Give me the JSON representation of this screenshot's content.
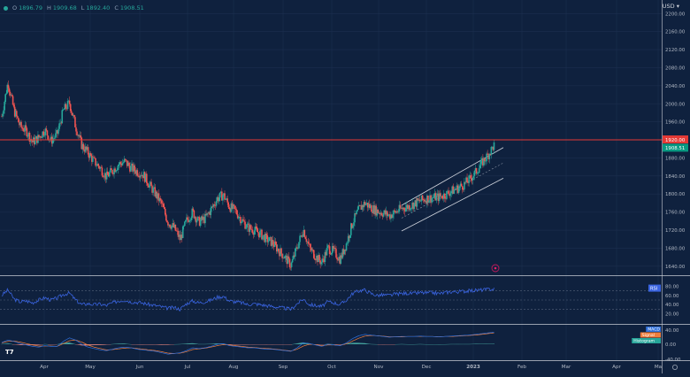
{
  "legend": {
    "o_label": "O",
    "o_value": "1896.79",
    "h_label": "H",
    "h_value": "1909.68",
    "l_label": "L",
    "l_value": "1892.40",
    "c_label": "C",
    "c_value": "1908.51"
  },
  "currency": "USD",
  "price_axis": {
    "ticks": [
      "2200.00",
      "2160.00",
      "2120.00",
      "2080.00",
      "2040.00",
      "2000.00",
      "1960.00",
      "1920.00",
      "1880.00",
      "1840.00",
      "1800.00",
      "1760.00",
      "1720.00",
      "1680.00",
      "1640.00"
    ],
    "level_value": "1920.00",
    "last_value": "1908.51"
  },
  "time_axis": [
    "Apr",
    "May",
    "Jun",
    "Jul",
    "Aug",
    "Sep",
    "Oct",
    "Nov",
    "Dec",
    "2023",
    "Feb",
    "Mar",
    "Apr",
    "Ma"
  ],
  "rsi": {
    "label": "RSI",
    "ticks": [
      "80.00",
      "60.00",
      "40.00",
      "20.00"
    ]
  },
  "macd": {
    "ticks": [
      "40.00",
      "0.00",
      "-40.00"
    ],
    "labels": [
      "MACD",
      "Signal",
      "Histogram"
    ]
  },
  "colors": {
    "background": "#0f213e",
    "up": "#26a69a",
    "down": "#ef5350",
    "level": "#e53935",
    "rsi": "#3a64e0",
    "macd": "#2f6fd9",
    "signal": "#ef7d3c"
  },
  "chart_data": {
    "type": "candlestick",
    "y_range": [
      1620,
      2230
    ],
    "horizontal_level": 1920,
    "last_close": 1908.51,
    "open_high_low_close": [
      1896.79,
      1909.68,
      1892.4,
      1908.51
    ],
    "close_path": [
      1972,
      2048,
      1985,
      1950,
      1940,
      1915,
      1925,
      1942,
      1918,
      1932,
      1985,
      2002,
      1950,
      1908,
      1892,
      1872,
      1858,
      1838,
      1852,
      1866,
      1872,
      1858,
      1850,
      1843,
      1820,
      1800,
      1777,
      1738,
      1725,
      1700,
      1740,
      1760,
      1738,
      1745,
      1765,
      1790,
      1798,
      1772,
      1762,
      1742,
      1726,
      1720,
      1712,
      1700,
      1692,
      1675,
      1660,
      1642,
      1682,
      1722,
      1680,
      1662,
      1648,
      1680,
      1672,
      1655,
      1690,
      1736,
      1765,
      1780,
      1770,
      1762,
      1758,
      1752,
      1760,
      1768,
      1772,
      1778,
      1785,
      1790,
      1792,
      1793,
      1798,
      1806,
      1812,
      1820,
      1832,
      1848,
      1868,
      1886,
      1908
    ],
    "channel": {
      "upper": [
        [
          1775,
          1778
        ],
        [
          1903,
          1890
        ]
      ],
      "lower": [
        [
          1718,
          1722
        ],
        [
          1852,
          1835
        ]
      ]
    },
    "rsi_range": [
      0,
      100
    ],
    "rsi_levels": [
      70,
      50,
      30
    ],
    "rsi_path": [
      60,
      72,
      52,
      46,
      48,
      44,
      50,
      55,
      50,
      54,
      62,
      65,
      50,
      40,
      42,
      40,
      41,
      38,
      44,
      48,
      50,
      46,
      45,
      43,
      40,
      38,
      35,
      32,
      34,
      30,
      42,
      48,
      44,
      46,
      50,
      56,
      58,
      48,
      46,
      44,
      40,
      42,
      40,
      38,
      36,
      34,
      32,
      30,
      42,
      52,
      40,
      38,
      36,
      46,
      44,
      40,
      50,
      64,
      70,
      72,
      64,
      60,
      61,
      60,
      63,
      64,
      65,
      64,
      66,
      65,
      66,
      64,
      66,
      68,
      68,
      69,
      70,
      71,
      72,
      73,
      74
    ],
    "macd_range": [
      -40,
      50
    ],
    "macd_path": [
      5,
      12,
      8,
      2,
      -2,
      -6,
      -8,
      -4,
      -6,
      -6,
      8,
      18,
      12,
      0,
      -8,
      -12,
      -16,
      -18,
      -14,
      -10,
      -8,
      -10,
      -14,
      -16,
      -18,
      -20,
      -24,
      -28,
      -26,
      -24,
      -18,
      -10,
      -12,
      -10,
      -6,
      0,
      2,
      -4,
      -6,
      -8,
      -10,
      -10,
      -12,
      -14,
      -14,
      -16,
      -18,
      -20,
      -10,
      4,
      2,
      -2,
      -6,
      0,
      -2,
      -4,
      4,
      16,
      24,
      28,
      26,
      24,
      22,
      20,
      21,
      22,
      22,
      22,
      23,
      22,
      22,
      21,
      22,
      23,
      24,
      25,
      26,
      28,
      30,
      32,
      34
    ],
    "signal_path": [
      4,
      8,
      9,
      6,
      2,
      -2,
      -5,
      -5,
      -5,
      -6,
      2,
      10,
      12,
      6,
      -2,
      -8,
      -12,
      -16,
      -15,
      -13,
      -11,
      -10,
      -12,
      -14,
      -16,
      -18,
      -21,
      -25,
      -26,
      -25,
      -21,
      -15,
      -13,
      -11,
      -8,
      -4,
      -1,
      -2,
      -4,
      -6,
      -8,
      -9,
      -11,
      -12,
      -13,
      -15,
      -17,
      -19,
      -14,
      -5,
      0,
      -1,
      -4,
      -2,
      -2,
      -3,
      1,
      9,
      17,
      23,
      25,
      24,
      23,
      21,
      21,
      21,
      22,
      22,
      22,
      22,
      22,
      21,
      22,
      22,
      23,
      24,
      25,
      26,
      28,
      30,
      32
    ]
  }
}
